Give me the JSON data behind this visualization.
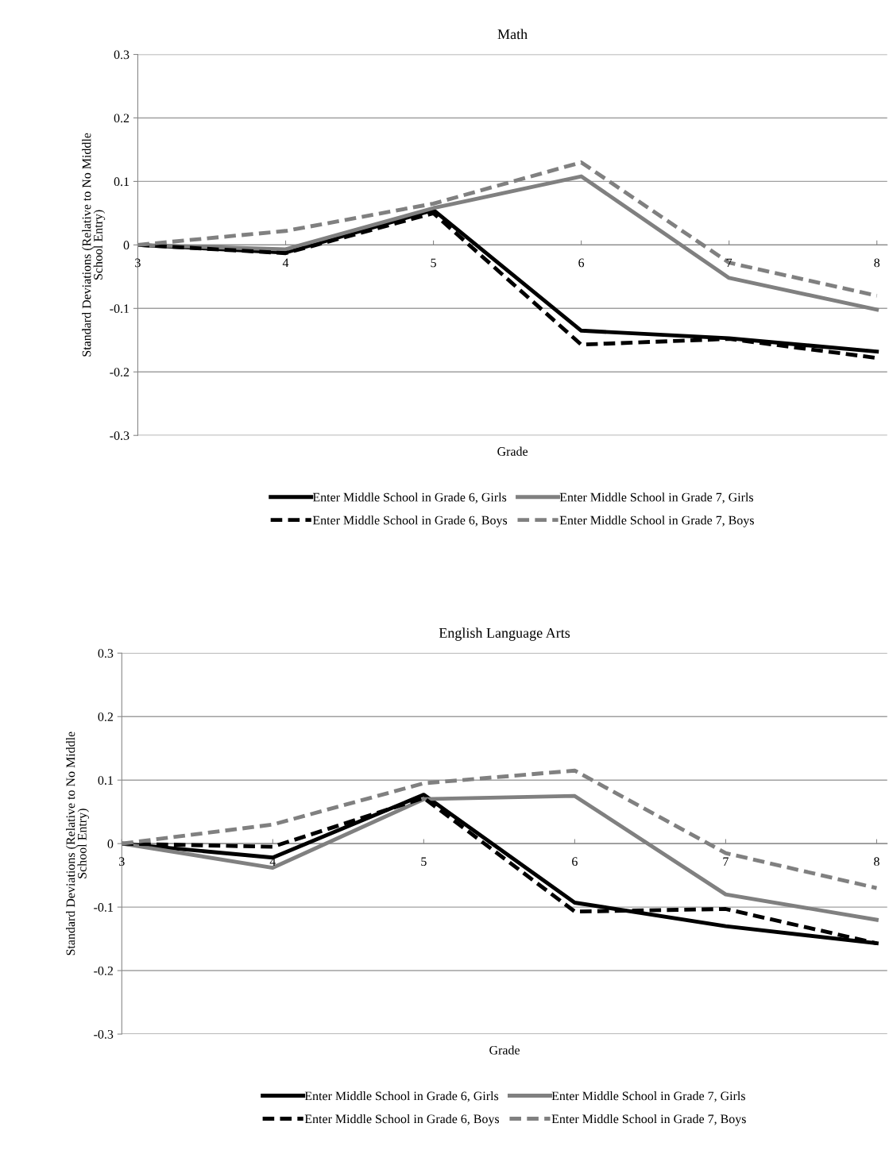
{
  "chart_data": [
    {
      "type": "line",
      "title": "Math",
      "xlabel": "Grade",
      "ylabel": "Standard Deviations (Relative to No Middle\nSchool Entry)",
      "categories": [
        "3",
        "4",
        "5",
        "6",
        "7",
        "8"
      ],
      "ylim": [
        -0.3,
        0.3
      ],
      "yticks": [
        -0.3,
        -0.2,
        -0.1,
        0,
        0.1,
        0.2,
        0.3
      ],
      "grid": "y",
      "legend": "bottom",
      "marker": "none",
      "series": [
        {
          "name": "Enter Middle School in Grade 6, Girls",
          "color": "#000000",
          "line_style": "solid",
          "values": [
            0,
            -0.012,
            0.055,
            -0.135,
            -0.147,
            -0.168
          ]
        },
        {
          "name": "Enter Middle School in Grade 7, Girls",
          "color": "#808080",
          "line_style": "solid",
          "values": [
            0,
            -0.007,
            0.058,
            0.108,
            -0.052,
            -0.102
          ]
        },
        {
          "name": "Enter Middle School in Grade 6, Boys",
          "color": "#000000",
          "line_style": "dashed",
          "values": [
            0,
            -0.013,
            0.05,
            -0.157,
            -0.148,
            -0.178
          ]
        },
        {
          "name": "Enter Middle School in Grade 7, Boys",
          "color": "#808080",
          "line_style": "dashed",
          "values": [
            0,
            0.022,
            0.065,
            0.13,
            -0.028,
            -0.08
          ]
        }
      ]
    },
    {
      "type": "line",
      "title": "English Language Arts",
      "xlabel": "Grade",
      "ylabel": "Standard Deviations (Relative to No Middle\nSchool Entry)",
      "categories": [
        "3",
        "4",
        "5",
        "6",
        "7",
        "8"
      ],
      "ylim": [
        -0.3,
        0.3
      ],
      "yticks": [
        -0.3,
        -0.2,
        -0.1,
        0,
        0.1,
        0.2,
        0.3
      ],
      "grid": "y",
      "legend": "bottom",
      "marker": "none",
      "series": [
        {
          "name": "Enter Middle School in Grade 6, Girls",
          "color": "#000000",
          "line_style": "solid",
          "values": [
            0,
            -0.022,
            0.077,
            -0.093,
            -0.13,
            -0.157
          ]
        },
        {
          "name": "Enter Middle School in Grade 7, Girls",
          "color": "#808080",
          "line_style": "solid",
          "values": [
            0,
            -0.038,
            0.07,
            0.075,
            -0.08,
            -0.12
          ]
        },
        {
          "name": "Enter Middle School in Grade 6, Boys",
          "color": "#000000",
          "line_style": "dashed",
          "values": [
            0,
            -0.005,
            0.072,
            -0.107,
            -0.103,
            -0.157
          ]
        },
        {
          "name": "Enter Middle School in Grade 7, Boys",
          "color": "#808080",
          "line_style": "dashed",
          "values": [
            0,
            0.03,
            0.095,
            0.115,
            -0.015,
            -0.07
          ]
        }
      ]
    }
  ]
}
